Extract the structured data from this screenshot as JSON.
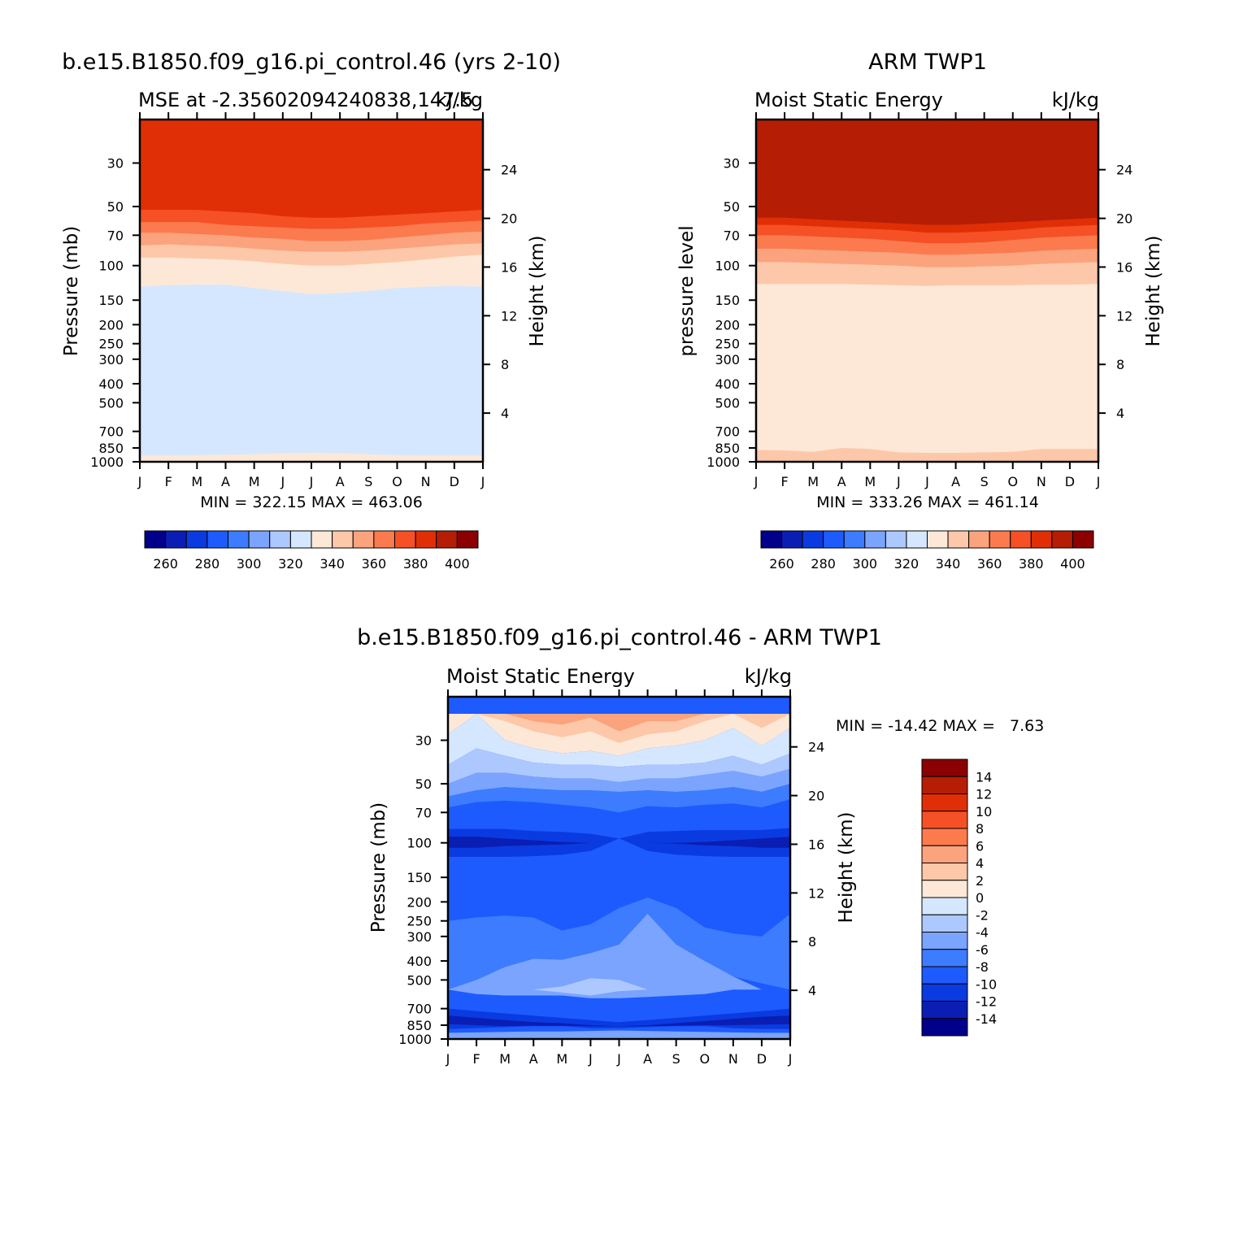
{
  "colors": {
    "mse_scale": [
      "#00008b",
      "#0b1eb3",
      "#0a3be0",
      "#1e5bff",
      "#3d7bff",
      "#7aa4ff",
      "#adc8ff",
      "#d4e7ff",
      "#fde8d8",
      "#fdc8aa",
      "#fba37c",
      "#fb7a4e",
      "#f55026",
      "#e02f07",
      "#b51e04",
      "#8b0000"
    ],
    "diff_scale": [
      "#00008b",
      "#0b1eb3",
      "#0a3be0",
      "#1e5bff",
      "#3d7bff",
      "#7aa4ff",
      "#adc8ff",
      "#d4e7ff",
      "#fde8d8",
      "#fdc8aa",
      "#fba37c",
      "#fb7a4e",
      "#f55026",
      "#e02f07",
      "#b51e04",
      "#8b0000"
    ]
  },
  "chart_data": [
    {
      "type": "heatmap",
      "panel": "model",
      "title": "b.e15.B1850.f09_g16.pi_control.46 (yrs 2-10)",
      "subtitle_left": "MSE at -2.35602094240838,147.5",
      "subtitle_right": "kJ/kg",
      "ylabel": "Pressure (mb)",
      "ylabel_right": "Height (km)",
      "x_ticks": [
        "J",
        "F",
        "M",
        "A",
        "M",
        "J",
        "J",
        "A",
        "S",
        "O",
        "N",
        "D",
        "J"
      ],
      "y_ticks": [
        "30",
        "50",
        "70",
        "100",
        "150",
        "200",
        "250",
        "300",
        "400",
        "500",
        "700",
        "850",
        "1000"
      ],
      "y_right_ticks": [
        "24",
        "20",
        "16",
        "12",
        "8",
        "4"
      ],
      "minmax": "MIN = 322.15 MAX = 463.06",
      "colorbar_labels": [
        "260",
        "280",
        "300",
        "320",
        "340",
        "360",
        "380",
        "400"
      ],
      "contour_levels": [
        250,
        260,
        270,
        280,
        290,
        300,
        310,
        320,
        330,
        340,
        350,
        360,
        370,
        380,
        390,
        400,
        410
      ],
      "layers": [
        {
          "value": 325,
          "top_p": [
            420,
            440,
            480,
            560,
            575,
            580,
            560,
            480,
            430,
            420,
            425,
            430,
            430
          ]
        },
        {
          "value": 335,
          "top_p": [
            128,
            126,
            125,
            125,
            130,
            135,
            140,
            138,
            135,
            130,
            128,
            127,
            128
          ]
        },
        {
          "value": 345,
          "top_p": [
            91,
            91,
            92,
            93,
            95,
            98,
            100,
            100,
            98,
            96,
            93,
            90,
            88
          ]
        },
        {
          "value": 355,
          "top_p": [
            79,
            78,
            79,
            80,
            82,
            84,
            85,
            85,
            84,
            82,
            80,
            78,
            77
          ]
        },
        {
          "value": 365,
          "top_p": [
            68,
            68,
            69,
            70,
            72,
            73,
            75,
            75,
            74,
            72,
            70,
            68,
            67
          ]
        },
        {
          "value": 375,
          "top_p": [
            60,
            60,
            60,
            62,
            63,
            64,
            65,
            65,
            64,
            63,
            61,
            60,
            59
          ]
        },
        {
          "value": 385,
          "top_p": [
            52,
            52,
            52,
            53,
            54,
            56,
            57,
            57,
            56,
            55,
            54,
            53,
            52
          ]
        },
        {
          "value": 415,
          "top_p": [
            18,
            18,
            18,
            18,
            18,
            18,
            18,
            18,
            18,
            18,
            18,
            18,
            18
          ]
        }
      ],
      "bottom_layer": {
        "value": 335,
        "top_p": [
          930,
          930,
          925,
          920,
          915,
          905,
          900,
          905,
          915,
          925,
          930,
          930,
          930
        ]
      }
    },
    {
      "type": "heatmap",
      "panel": "observation",
      "title": "ARM TWP1",
      "subtitle_left": "Moist Static Energy",
      "subtitle_right": "kJ/kg",
      "ylabel": "pressure level",
      "ylabel_right": "Height (km)",
      "x_ticks": [
        "J",
        "F",
        "M",
        "A",
        "M",
        "J",
        "J",
        "A",
        "S",
        "O",
        "N",
        "D",
        "J"
      ],
      "y_ticks": [
        "30",
        "50",
        "70",
        "100",
        "150",
        "200",
        "250",
        "300",
        "400",
        "500",
        "700",
        "850",
        "1000"
      ],
      "y_right_ticks": [
        "24",
        "20",
        "16",
        "12",
        "8",
        "4"
      ],
      "minmax": "MIN = 333.26 MAX = 461.14",
      "colorbar_labels": [
        "260",
        "280",
        "300",
        "320",
        "340",
        "360",
        "380",
        "400"
      ],
      "contour_levels": [
        250,
        260,
        270,
        280,
        290,
        300,
        310,
        320,
        330,
        340,
        350,
        360,
        370,
        380,
        390,
        400,
        410
      ],
      "layers": [
        {
          "value": 335,
          "top_p": [
            370,
            368,
            365,
            365,
            360,
            320,
            310,
            295,
            310,
            300,
            350,
            340,
            370
          ]
        },
        {
          "value": 345,
          "top_p": [
            124,
            124,
            124,
            124,
            125,
            126,
            127,
            126,
            126,
            126,
            125,
            125,
            124
          ]
        },
        {
          "value": 355,
          "top_p": [
            96,
            96,
            97,
            98,
            99,
            100,
            102,
            102,
            101,
            100,
            98,
            97,
            96
          ]
        },
        {
          "value": 365,
          "top_p": [
            82,
            82,
            83,
            84,
            85,
            86,
            88,
            88,
            87,
            86,
            84,
            83,
            82
          ]
        },
        {
          "value": 375,
          "top_p": [
            70,
            70,
            71,
            72,
            73,
            75,
            77,
            77,
            76,
            74,
            72,
            71,
            70
          ]
        },
        {
          "value": 385,
          "top_p": [
            62,
            62,
            63,
            64,
            65,
            66,
            68,
            68,
            67,
            66,
            64,
            63,
            62
          ]
        },
        {
          "value": 395,
          "top_p": [
            57,
            57,
            58,
            59,
            60,
            61,
            62,
            62,
            61,
            60,
            59,
            58,
            57
          ]
        },
        {
          "value": 415,
          "top_p": [
            18,
            18,
            18,
            18,
            18,
            18,
            18,
            18,
            18,
            18,
            18,
            18,
            18
          ]
        }
      ],
      "bottom_layer": {
        "value": 345,
        "top_p": [
          870,
          875,
          890,
          850,
          860,
          895,
          900,
          900,
          895,
          890,
          860,
          860,
          860
        ]
      }
    },
    {
      "type": "heatmap",
      "panel": "difference",
      "title": "b.e15.B1850.f09_g16.pi_control.46 - ARM TWP1",
      "subtitle_left": "Moist Static Energy",
      "subtitle_right": "kJ/kg",
      "ylabel": "Pressure (mb)",
      "ylabel_right": "Height (km)",
      "x_ticks": [
        "J",
        "F",
        "M",
        "A",
        "M",
        "J",
        "J",
        "A",
        "S",
        "O",
        "N",
        "D",
        "J"
      ],
      "y_ticks": [
        "30",
        "50",
        "70",
        "100",
        "150",
        "200",
        "250",
        "300",
        "400",
        "500",
        "700",
        "850",
        "1000"
      ],
      "y_right_ticks": [
        "24",
        "20",
        "16",
        "12",
        "8",
        "4"
      ],
      "minmax": "MIN = -14.42 MAX =   7.63",
      "colorbar_labels": [
        "14",
        "12",
        "10",
        "8",
        "6",
        "4",
        "2",
        "0",
        "-2",
        "-4",
        "-6",
        "-8",
        "-10",
        "-12",
        "-14"
      ],
      "contour_levels": [
        -16,
        -14,
        -12,
        -10,
        -8,
        -6,
        -4,
        -2,
        0,
        2,
        4,
        6,
        8,
        10,
        12,
        14,
        16
      ],
      "background_value": -9,
      "regions": [
        {
          "value": 1,
          "top_p": 22,
          "bottom_p": [
            28,
            22,
            30,
            33,
            35,
            34,
            36,
            33,
            32,
            30,
            26,
            32,
            26
          ]
        },
        {
          "value": 3,
          "top_p": 22,
          "bottom_p": [
            22,
            22,
            24,
            27,
            29,
            27,
            31,
            28,
            27,
            24,
            22,
            26,
            22
          ]
        },
        {
          "value": 5,
          "top_p": 22,
          "bottom_p": [
            22,
            22,
            22,
            24,
            25,
            23,
            27,
            24,
            24,
            22,
            22,
            22,
            22
          ]
        },
        {
          "value": -1,
          "top_p": [
            28,
            22,
            30,
            33,
            35,
            34,
            36,
            33,
            32,
            30,
            26,
            32,
            26
          ],
          "bottom_p": [
            40,
            33,
            36,
            39,
            40,
            40,
            41,
            40,
            40,
            39,
            36,
            40,
            35
          ]
        },
        {
          "value": -3,
          "top_p": [
            40,
            33,
            36,
            39,
            40,
            40,
            41,
            40,
            40,
            39,
            36,
            40,
            35
          ],
          "bottom_p": [
            50,
            44,
            44,
            46,
            47,
            47,
            49,
            47,
            47,
            45,
            43,
            46,
            42
          ]
        },
        {
          "value": -5,
          "top_p": [
            50,
            44,
            44,
            46,
            47,
            47,
            49,
            47,
            47,
            45,
            43,
            46,
            42
          ],
          "bottom_p": [
            58,
            54,
            52,
            53,
            54,
            54,
            55,
            54,
            55,
            54,
            52,
            55,
            50
          ]
        },
        {
          "value": -7,
          "top_p": [
            58,
            54,
            52,
            53,
            54,
            54,
            55,
            54,
            55,
            54,
            52,
            55,
            50
          ],
          "bottom_p": [
            66,
            62,
            61,
            62,
            64,
            66,
            70,
            65,
            66,
            64,
            63,
            66,
            60
          ]
        },
        {
          "value": -11,
          "top_p": [
            85,
            85,
            85,
            87,
            88,
            90,
            95,
            88,
            87,
            86,
            86,
            86,
            84
          ],
          "bottom_p": [
            118,
            118,
            118,
            117,
            115,
            110,
            95,
            110,
            115,
            117,
            118,
            118,
            118
          ]
        },
        {
          "value": -13,
          "top_p": [
            93,
            93,
            95,
            97,
            99,
            100,
            100,
            100,
            100,
            99,
            97,
            95,
            93
          ],
          "bottom_p": [
            106,
            106,
            104,
            103,
            102,
            100,
            100,
            100,
            101,
            103,
            104,
            106,
            106
          ]
        },
        {
          "value": -7,
          "top_p": [
            250,
            240,
            235,
            240,
            280,
            260,
            215,
            190,
            215,
            270,
            290,
            300,
            230
          ],
          "bottom_p": [
            560,
            520,
            480,
            470,
            480,
            500,
            510,
            500,
            500,
            470,
            480,
            520,
            560
          ]
        },
        {
          "value": -5,
          "top_p": [
            560,
            500,
            430,
            390,
            395,
            365,
            330,
            230,
            330,
            400,
            480,
            560,
            560
          ],
          "bottom_p": [
            560,
            590,
            600,
            600,
            600,
            620,
            620,
            610,
            600,
            590,
            560,
            560,
            560
          ]
        },
        {
          "value": -3,
          "top_p": [
            560,
            560,
            560,
            560,
            540,
            490,
            500,
            560,
            560,
            560,
            560,
            560,
            560
          ],
          "bottom_p": [
            560,
            560,
            560,
            560,
            580,
            600,
            570,
            560,
            560,
            560,
            560,
            560,
            560
          ]
        },
        {
          "value": -11,
          "top_p": [
            700,
            720,
            740,
            760,
            780,
            800,
            820,
            800,
            780,
            760,
            740,
            720,
            700
          ],
          "bottom_p": [
            890,
            880,
            870,
            860,
            860,
            880,
            880,
            870,
            860,
            860,
            880,
            890,
            890
          ]
        },
        {
          "value": -13,
          "top_p": [
            760,
            780,
            800,
            820,
            830,
            850,
            860,
            850,
            830,
            810,
            790,
            770,
            760
          ],
          "bottom_p": [
            840,
            850,
            860,
            855,
            855,
            860,
            860,
            860,
            855,
            850,
            850,
            845,
            840
          ]
        },
        {
          "value": -5,
          "top_p": [
            930,
            925,
            920,
            915,
            915,
            910,
            905,
            910,
            915,
            920,
            925,
            930,
            930
          ],
          "bottom_p": [
            1000,
            1000,
            1000,
            1000,
            1000,
            1000,
            1000,
            1000,
            1000,
            1000,
            1000,
            1000,
            1000
          ]
        }
      ]
    }
  ]
}
